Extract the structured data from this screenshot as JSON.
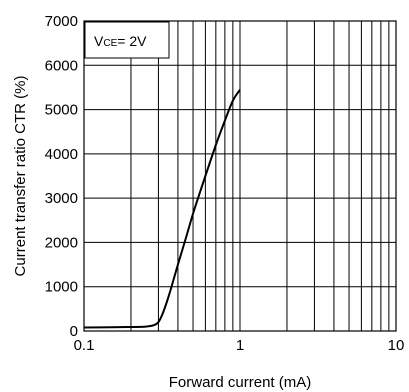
{
  "chart_data": {
    "type": "line",
    "title": "",
    "xlabel": "Forward current (mA)",
    "ylabel": "Current transfer ratio CTR (%)",
    "x_scale": "log",
    "xlim": [
      0.1,
      10
    ],
    "ylim": [
      0,
      7000
    ],
    "x_ticks": [
      0.1,
      1,
      10
    ],
    "x_tick_labels": [
      "0.1",
      "1",
      "10"
    ],
    "y_ticks": [
      0,
      1000,
      2000,
      3000,
      4000,
      5000,
      6000,
      7000
    ],
    "y_tick_labels": [
      "0",
      "1000",
      "2000",
      "3000",
      "4000",
      "5000",
      "6000",
      "7000"
    ],
    "grid": true,
    "annotation": {
      "base": "V",
      "subscript": "CE",
      "rest": "= 2V"
    },
    "series": [
      {
        "x": [
          0.1,
          0.15,
          0.2,
          0.25,
          0.28,
          0.3,
          0.32,
          0.35,
          0.4,
          0.45,
          0.5,
          0.55,
          0.6,
          0.7,
          0.8,
          0.9,
          1.0
        ],
        "y": [
          80,
          85,
          90,
          100,
          130,
          200,
          400,
          800,
          1500,
          2100,
          2650,
          3100,
          3500,
          4200,
          4750,
          5200,
          5450
        ]
      }
    ]
  }
}
